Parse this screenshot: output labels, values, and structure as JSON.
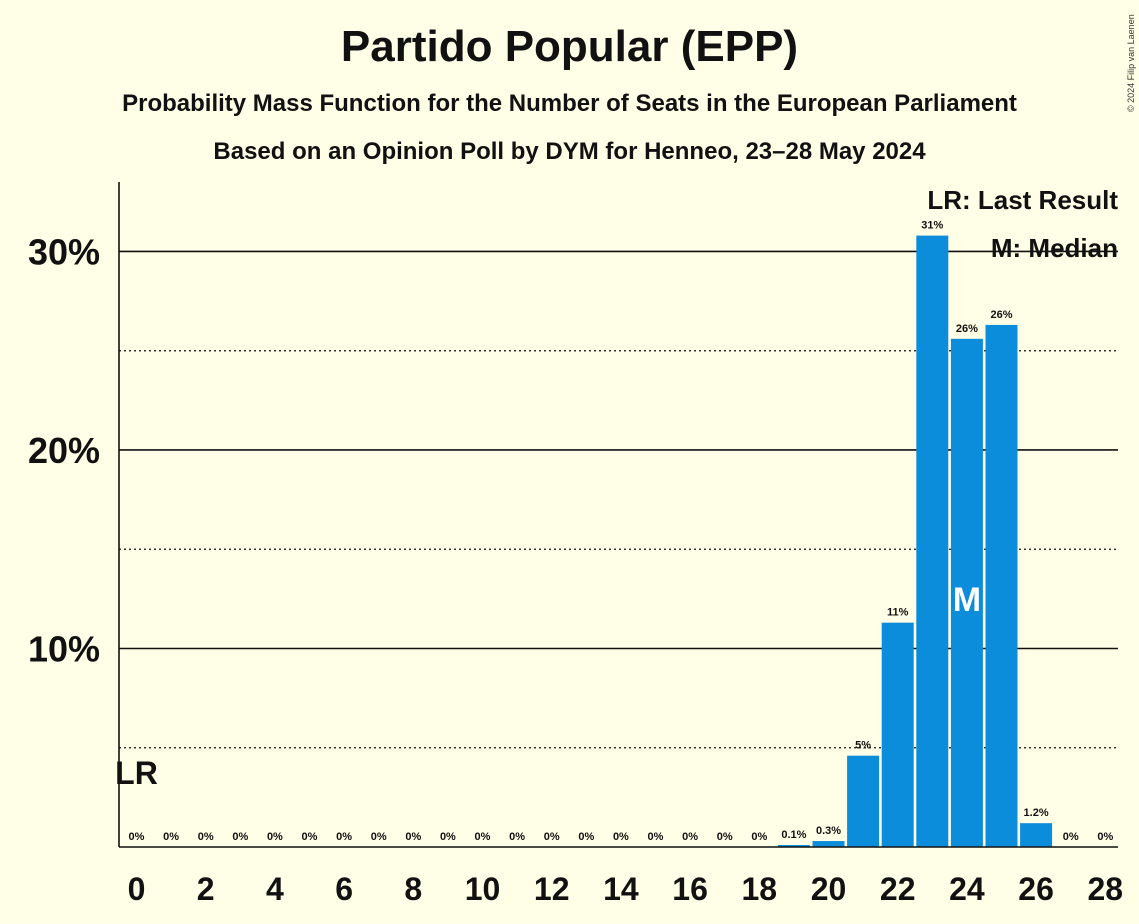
{
  "title": "Partido Popular (EPP)",
  "subtitle": "Probability Mass Function for the Number of Seats in the European Parliament",
  "subtitle2": "Based on an Opinion Poll by DYM for Henneo, 23–28 May 2024",
  "copyright": "© 2024 Filip van Laenen",
  "legend": {
    "last_result": "LR: Last Result",
    "median": "M: Median"
  },
  "markers": {
    "last_result_label": "LR",
    "last_result_seat": 0,
    "median_label": "M",
    "median_seat": 24
  },
  "colors": {
    "bar": "#0C8DDB",
    "background": "#FFFEE6",
    "text": "#111111"
  },
  "chart_data": {
    "type": "bar",
    "title": "Partido Popular (EPP)",
    "xlabel": "",
    "ylabel": "",
    "x": [
      0,
      1,
      2,
      3,
      4,
      5,
      6,
      7,
      8,
      9,
      10,
      11,
      12,
      13,
      14,
      15,
      16,
      17,
      18,
      19,
      20,
      21,
      22,
      23,
      24,
      25,
      26,
      27,
      28
    ],
    "values": [
      0,
      0,
      0,
      0,
      0,
      0,
      0,
      0,
      0,
      0,
      0,
      0,
      0,
      0,
      0,
      0,
      0,
      0,
      0,
      0.1,
      0.3,
      4.6,
      11.3,
      30.8,
      25.6,
      26.3,
      1.2,
      0,
      0
    ],
    "value_labels": [
      "0%",
      "0%",
      "0%",
      "0%",
      "0%",
      "0%",
      "0%",
      "0%",
      "0%",
      "0%",
      "0%",
      "0%",
      "0%",
      "0%",
      "0%",
      "0%",
      "0%",
      "0%",
      "0%",
      "0.1%",
      "0.3%",
      "5%",
      "11%",
      "31%",
      "26%",
      "26%",
      "1.2%",
      "0%",
      "0%"
    ],
    "x_tick_labels": [
      "0",
      "2",
      "4",
      "6",
      "8",
      "10",
      "12",
      "14",
      "16",
      "18",
      "20",
      "22",
      "24",
      "26",
      "28"
    ],
    "x_tick_values": [
      0,
      2,
      4,
      6,
      8,
      10,
      12,
      14,
      16,
      18,
      20,
      22,
      24,
      26,
      28
    ],
    "y_ticks": [
      10,
      20,
      30
    ],
    "y_tick_labels": [
      "10%",
      "20%",
      "30%"
    ],
    "y_minor_ticks": [
      5,
      15,
      25
    ],
    "ylim": [
      0,
      33.5
    ],
    "grid": true,
    "legend_position": "top-right"
  }
}
